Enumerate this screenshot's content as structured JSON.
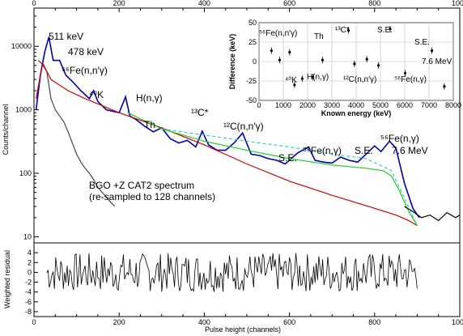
{
  "chart_data": [
    {
      "type": "line",
      "panel": "main",
      "y_scale": "log",
      "xlim": [
        0,
        1000
      ],
      "ylim": [
        8,
        40000
      ],
      "ylabel": "Counts/channel",
      "x_ticks": [
        "0",
        "200",
        "400",
        "600",
        "800",
        "1000"
      ],
      "y_ticks": [
        {
          "value": 10,
          "label": "10"
        },
        {
          "value": 100,
          "label": "100"
        },
        {
          "value": 1000,
          "label": "1000"
        },
        {
          "value": 10000,
          "label": "10000"
        }
      ],
      "grid": false,
      "series": [
        {
          "name": "BGO +Z CAT2 spectrum (re-sampled to 128 channels)",
          "color": "#444444",
          "x": [
            10,
            20,
            30,
            40,
            50,
            60,
            70,
            80,
            90,
            100,
            110,
            120,
            130,
            140,
            150,
            160,
            170,
            180,
            190
          ],
          "y": [
            6000,
            5200,
            4000,
            1500,
            1000,
            800,
            650,
            450,
            300,
            200,
            150,
            120,
            100,
            80,
            60,
            50,
            42,
            35,
            30
          ]
        },
        {
          "name": "",
          "color": "#0000aa",
          "x": [
            5,
            15,
            25,
            35,
            45,
            60,
            75,
            90,
            110,
            130,
            140,
            150,
            170,
            200,
            215,
            225,
            240,
            260,
            280,
            300,
            320,
            340,
            360,
            380,
            395,
            410,
            430,
            450,
            470,
            490,
            510,
            530,
            550,
            570,
            590,
            620,
            645,
            660,
            680,
            700,
            720,
            740,
            760,
            780,
            800,
            815,
            835,
            850,
            870,
            890,
            905
          ],
          "y": [
            1000,
            3500,
            8000,
            14000,
            6000,
            6000,
            3500,
            2800,
            2000,
            1500,
            2000,
            1350,
            1000,
            900,
            1600,
            800,
            700,
            550,
            450,
            520,
            350,
            300,
            330,
            260,
            460,
            280,
            230,
            230,
            300,
            430,
            200,
            190,
            170,
            160,
            140,
            210,
            260,
            160,
            150,
            145,
            180,
            160,
            150,
            200,
            270,
            220,
            320,
            250,
            70,
            28,
            20
          ]
        },
        {
          "name": "",
          "color": "#cc0000",
          "x": [
            5,
            20,
            40,
            80,
            120,
            200,
            300,
            400,
            500,
            600,
            700,
            800,
            850,
            880,
            900
          ],
          "y": [
            1500,
            5500,
            3000,
            2000,
            1500,
            900,
            520,
            280,
            140,
            75,
            45,
            28,
            22,
            18,
            15
          ]
        },
        {
          "name": "",
          "color": "#22cc22",
          "x": [
            220,
            300,
            400,
            500,
            600,
            700,
            780,
            820,
            840,
            860,
            880,
            900
          ],
          "y": [
            900,
            500,
            320,
            230,
            170,
            135,
            120,
            110,
            90,
            50,
            25,
            15
          ]
        },
        {
          "name": "",
          "color": "#33cccc",
          "x": [
            300,
            400,
            500,
            600,
            700,
            780,
            840,
            900
          ],
          "y": [
            500,
            400,
            320,
            260,
            200,
            170,
            110,
            15
          ]
        },
        {
          "name": "",
          "color": "#000000",
          "x": [
            870,
            890,
            910,
            930,
            950,
            970,
            990,
            1000
          ],
          "y": [
            30,
            25,
            20,
            22,
            18,
            24,
            20,
            22
          ]
        }
      ],
      "annotations": [
        "511 keV",
        "478 keV",
        "⁵⁶Fe(n,n′γ)",
        "⁴⁰K",
        "H(n,γ)",
        "Th",
        "¹³C*",
        "¹²C(n,n′γ)",
        "S.E.",
        "⁵⁶Fe(n,γ)",
        "S.E.",
        "⁵⁶Fe(n,γ)",
        "7.6 MeV",
        "BGO +Z CAT2 spectrum",
        "(re-sampled to 128 channels)"
      ]
    },
    {
      "type": "scatter",
      "panel": "inset",
      "xlabel": "Known energy (keV)",
      "ylabel": "Difference (keV)",
      "xlim": [
        0,
        8000
      ],
      "ylim": [
        -50,
        50
      ],
      "x_ticks": [
        "0",
        "1000",
        "2000",
        "3000",
        "4000",
        "5000",
        "6000",
        "7000",
        "8000"
      ],
      "y_ticks": [
        "-50",
        "-25",
        "0",
        "25",
        "50"
      ],
      "grid": true,
      "points": [
        {
          "x": 511,
          "y": 14
        },
        {
          "x": 847,
          "y": 2
        },
        {
          "x": 1261,
          "y": 12
        },
        {
          "x": 1461,
          "y": -30
        },
        {
          "x": 1779,
          "y": -22
        },
        {
          "x": 2223,
          "y": -20
        },
        {
          "x": 2614,
          "y": 2
        },
        {
          "x": 3684,
          "y": 40
        },
        {
          "x": 3929,
          "y": -3
        },
        {
          "x": 4439,
          "y": 3
        },
        {
          "x": 4918,
          "y": -5
        },
        {
          "x": 5400,
          "y": 42
        },
        {
          "x": 6018,
          "y": -15
        },
        {
          "x": 7120,
          "y": 14
        },
        {
          "x": 7631,
          "y": -32
        }
      ],
      "annotations": [
        "⁵⁶Fe(n,n′γ)",
        "Th",
        "¹³C*",
        "S.E.",
        "S.E.",
        "7.6 MeV",
        "⁴⁰K",
        "H(n,γ)",
        "¹²C(n,n′γ)",
        "⁵⁶Fe(n,γ)"
      ]
    },
    {
      "type": "bar",
      "panel": "residual",
      "xlabel": "Pulse height (channels)",
      "ylabel": "Weighted residual",
      "xlim": [
        0,
        1000
      ],
      "ylim": [
        -9,
        6
      ],
      "x_ticks": [
        "0",
        "200",
        "400",
        "600",
        "800",
        "1000"
      ],
      "y_ticks": [
        "-8",
        "-6",
        "-4",
        "-2",
        "0",
        "2",
        "4"
      ],
      "data_range": [
        30,
        900
      ],
      "amplitude": 4
    }
  ],
  "colors": {
    "data": "#0000aa",
    "background_fit": "#cc0000",
    "continuum": "#22cc22",
    "peaks": "#33cccc",
    "raw": "#444444"
  }
}
